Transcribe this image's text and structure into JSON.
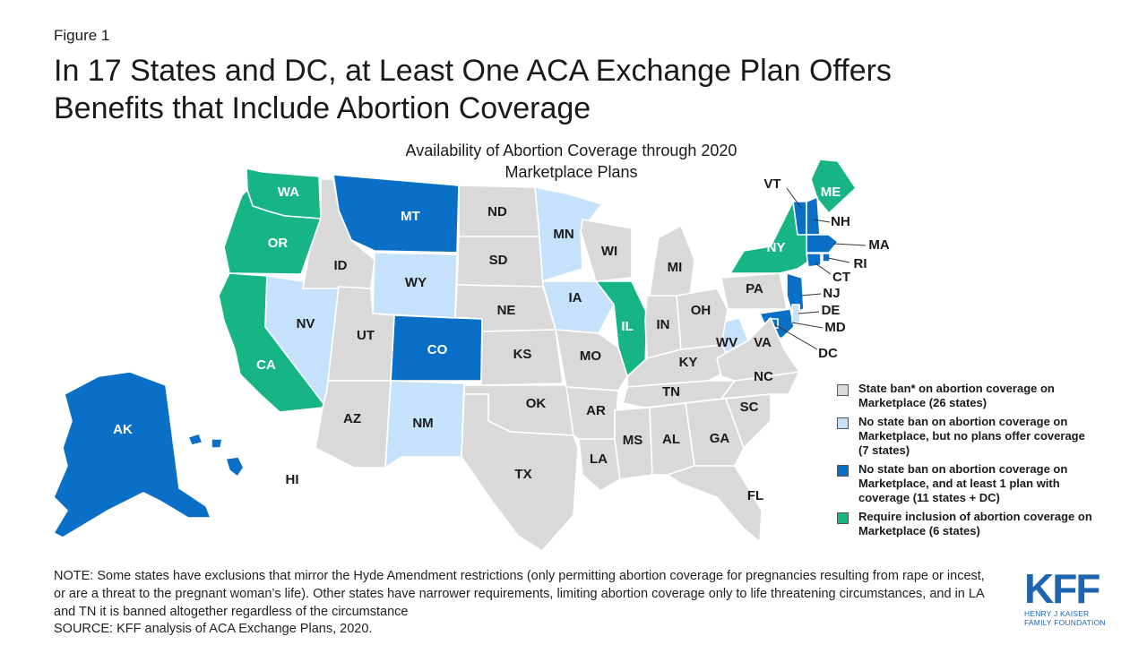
{
  "figure_label": "Figure 1",
  "title_lines": [
    "In 17 States and DC, at Least One ACA Exchange Plan Offers",
    "Benefits that Include Abortion Coverage"
  ],
  "map_title_lines": [
    "Availability of Abortion Coverage through 2020",
    "Marketplace Plans"
  ],
  "colors": {
    "ban": "#d9d9d9",
    "no_ban_no_plans": "#c6e2fb",
    "no_ban_with_plans": "#0a6fc7",
    "required": "#17b584",
    "label_dark": "#1a1a1a",
    "label_light": "#ffffff"
  },
  "legend": [
    {
      "key": "ban",
      "label": "State ban* on abortion coverage on Marketplace (26 states)"
    },
    {
      "key": "no_ban_no_plans",
      "label": "No state ban on abortion coverage on Marketplace, but no plans offer coverage (7 states)"
    },
    {
      "key": "no_ban_with_plans",
      "label": "No state ban on abortion coverage on Marketplace, and at least 1 plan with coverage (11 states + DC)"
    },
    {
      "key": "required",
      "label": "Require inclusion of abortion coverage on Marketplace (6 states)"
    }
  ],
  "states": [
    {
      "abbr": "WA",
      "category": "required"
    },
    {
      "abbr": "OR",
      "category": "required"
    },
    {
      "abbr": "CA",
      "category": "required"
    },
    {
      "abbr": "NY",
      "category": "required"
    },
    {
      "abbr": "ME",
      "category": "required"
    },
    {
      "abbr": "IL",
      "category": "required"
    },
    {
      "abbr": "MT",
      "category": "no_ban_with_plans"
    },
    {
      "abbr": "CO",
      "category": "no_ban_with_plans"
    },
    {
      "abbr": "AK",
      "category": "no_ban_with_plans"
    },
    {
      "abbr": "HI",
      "category": "no_ban_with_plans"
    },
    {
      "abbr": "NJ",
      "category": "no_ban_with_plans"
    },
    {
      "abbr": "MD",
      "category": "no_ban_with_plans"
    },
    {
      "abbr": "VT",
      "category": "no_ban_with_plans"
    },
    {
      "abbr": "NH",
      "category": "no_ban_with_plans"
    },
    {
      "abbr": "MA",
      "category": "no_ban_with_plans"
    },
    {
      "abbr": "RI",
      "category": "no_ban_with_plans"
    },
    {
      "abbr": "CT",
      "category": "no_ban_with_plans"
    },
    {
      "abbr": "DC",
      "category": "no_ban_with_plans"
    },
    {
      "abbr": "NV",
      "category": "no_ban_no_plans"
    },
    {
      "abbr": "WY",
      "category": "no_ban_no_plans"
    },
    {
      "abbr": "NM",
      "category": "no_ban_no_plans"
    },
    {
      "abbr": "MN",
      "category": "no_ban_no_plans"
    },
    {
      "abbr": "IA",
      "category": "no_ban_no_plans"
    },
    {
      "abbr": "WV",
      "category": "no_ban_no_plans"
    },
    {
      "abbr": "DE",
      "category": "no_ban_no_plans"
    },
    {
      "abbr": "ID",
      "category": "ban"
    },
    {
      "abbr": "UT",
      "category": "ban"
    },
    {
      "abbr": "AZ",
      "category": "ban"
    },
    {
      "abbr": "ND",
      "category": "ban"
    },
    {
      "abbr": "SD",
      "category": "ban"
    },
    {
      "abbr": "NE",
      "category": "ban"
    },
    {
      "abbr": "KS",
      "category": "ban"
    },
    {
      "abbr": "OK",
      "category": "ban"
    },
    {
      "abbr": "TX",
      "category": "ban"
    },
    {
      "abbr": "MO",
      "category": "ban"
    },
    {
      "abbr": "AR",
      "category": "ban"
    },
    {
      "abbr": "LA",
      "category": "ban"
    },
    {
      "abbr": "WI",
      "category": "ban"
    },
    {
      "abbr": "MI",
      "category": "ban"
    },
    {
      "abbr": "IN",
      "category": "ban"
    },
    {
      "abbr": "OH",
      "category": "ban"
    },
    {
      "abbr": "KY",
      "category": "ban"
    },
    {
      "abbr": "TN",
      "category": "ban"
    },
    {
      "abbr": "MS",
      "category": "ban"
    },
    {
      "abbr": "AL",
      "category": "ban"
    },
    {
      "abbr": "GA",
      "category": "ban"
    },
    {
      "abbr": "FL",
      "category": "ban"
    },
    {
      "abbr": "SC",
      "category": "ban"
    },
    {
      "abbr": "NC",
      "category": "ban"
    },
    {
      "abbr": "VA",
      "category": "ban"
    },
    {
      "abbr": "PA",
      "category": "ban"
    }
  ],
  "note": "NOTE: Some states have exclusions that mirror the Hyde Amendment restrictions (only permitting abortion coverage for pregnancies resulting from rape or incest, or are a threat to the pregnant woman’s life). Other states have narrower requirements, limiting abortion coverage only to life threatening circumstances, and in LA and TN it is banned altogether regardless of the circumstance",
  "source": "SOURCE: KFF analysis of ACA Exchange Plans, 2020.",
  "logo": {
    "mark": "KFF",
    "line1": "HENRY J KAISER",
    "line2": "FAMILY FOUNDATION"
  }
}
